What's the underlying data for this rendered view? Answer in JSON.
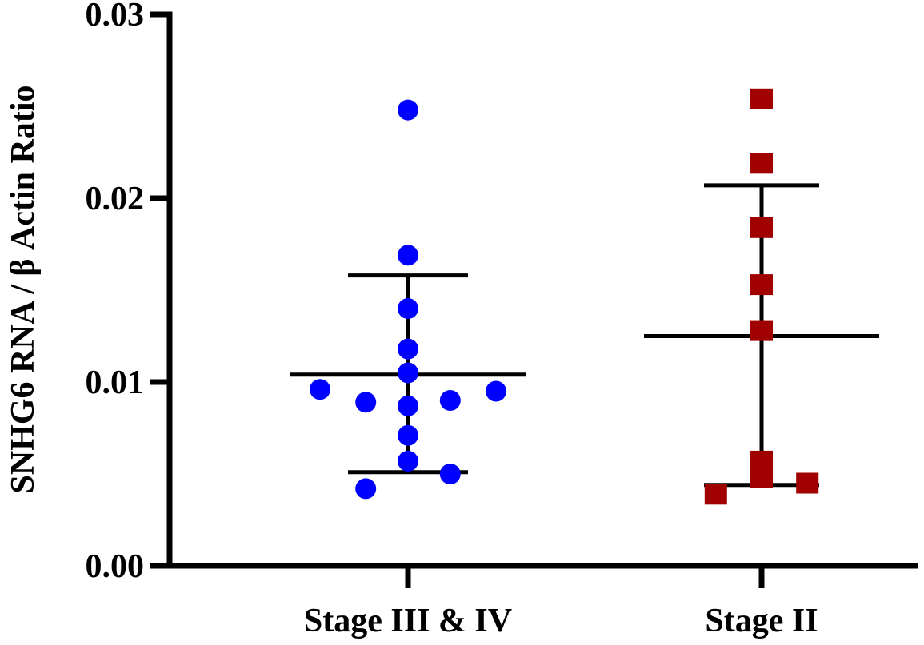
{
  "chart_data": {
    "type": "scatter",
    "title": "",
    "xlabel": "",
    "ylabel": "SNHG6 RNA / β Actin Ratio",
    "ylim": [
      0,
      0.03
    ],
    "yticks": [
      {
        "value": 0.0,
        "label": "0.00"
      },
      {
        "value": 0.01,
        "label": "0.01"
      },
      {
        "value": 0.02,
        "label": "0.02"
      },
      {
        "value": 0.03,
        "label": "0.03"
      }
    ],
    "categories": [
      "Stage III & IV",
      "Stage II"
    ],
    "series": [
      {
        "name": "Stage III & IV",
        "marker": "circle",
        "color": "#0000ff",
        "mean": 0.0104,
        "sd_upper": 0.0158,
        "sd_lower": 0.0051,
        "points": [
          {
            "offset": 0.0,
            "y": 0.0248
          },
          {
            "offset": 0.0,
            "y": 0.0169
          },
          {
            "offset": 0.0,
            "y": 0.014
          },
          {
            "offset": 0.0,
            "y": 0.0118
          },
          {
            "offset": 0.0,
            "y": 0.0105
          },
          {
            "offset": -0.25,
            "y": 0.0096
          },
          {
            "offset": 0.25,
            "y": 0.0095
          },
          {
            "offset": -0.12,
            "y": 0.0089
          },
          {
            "offset": 0.12,
            "y": 0.009
          },
          {
            "offset": 0.0,
            "y": 0.0087
          },
          {
            "offset": 0.0,
            "y": 0.0071
          },
          {
            "offset": 0.0,
            "y": 0.0057
          },
          {
            "offset": 0.12,
            "y": 0.005
          },
          {
            "offset": -0.12,
            "y": 0.0042
          }
        ]
      },
      {
        "name": "Stage II",
        "marker": "square",
        "color": "#a00000",
        "mean": 0.0125,
        "sd_upper": 0.0207,
        "sd_lower": 0.0044,
        "points": [
          {
            "offset": 0.0,
            "y": 0.0254
          },
          {
            "offset": 0.0,
            "y": 0.0219
          },
          {
            "offset": 0.0,
            "y": 0.0184
          },
          {
            "offset": 0.0,
            "y": 0.0153
          },
          {
            "offset": 0.0,
            "y": 0.0128
          },
          {
            "offset": 0.0,
            "y": 0.0057
          },
          {
            "offset": 0.0,
            "y": 0.0048
          },
          {
            "offset": 0.13,
            "y": 0.0045
          },
          {
            "offset": -0.13,
            "y": 0.0039
          }
        ]
      }
    ]
  }
}
